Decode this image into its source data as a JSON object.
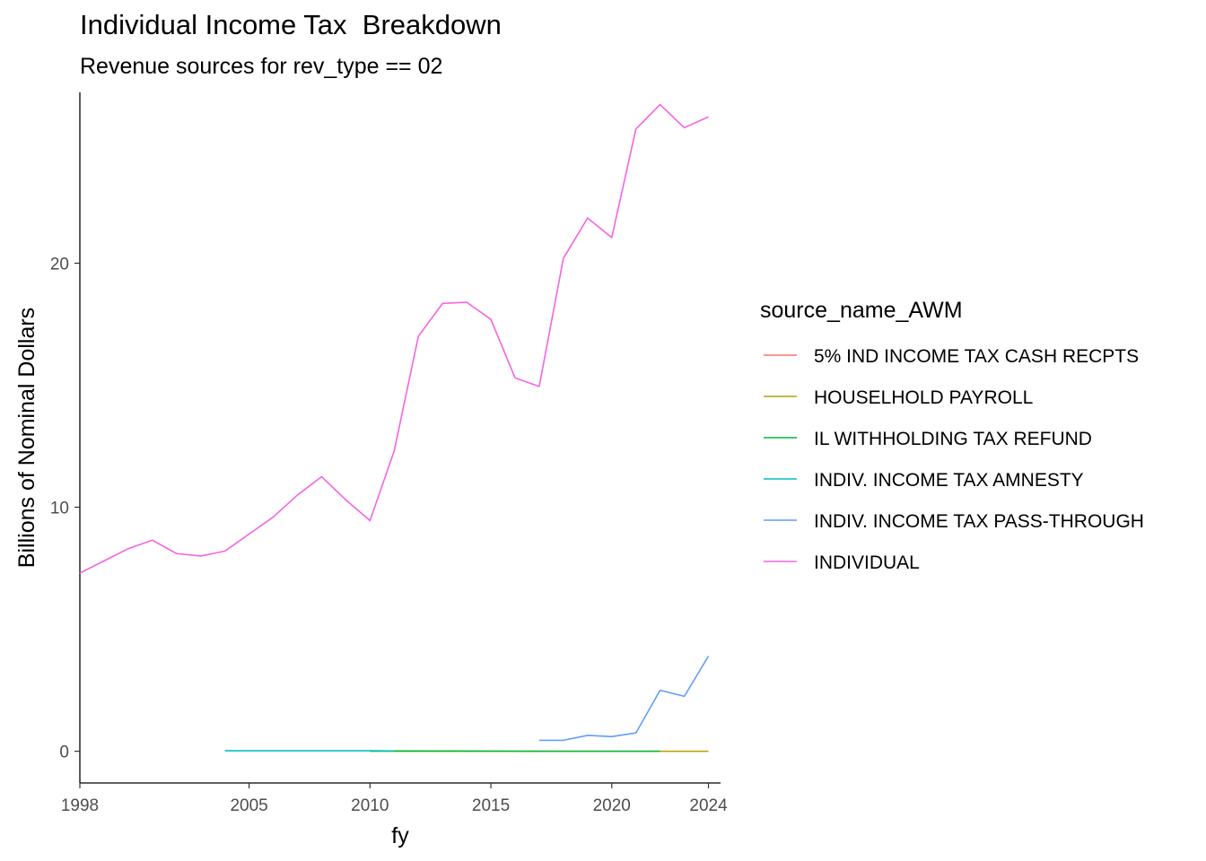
{
  "chart_data": {
    "type": "line",
    "title": "Individual Income Tax  Breakdown",
    "subtitle": "Revenue sources for rev_type == 02",
    "xlabel": "fy",
    "ylabel": "Billions of Nominal Dollars",
    "xlim": [
      1998,
      2024.5
    ],
    "ylim": [
      -1.3,
      27.0
    ],
    "x_ticks": [
      1998,
      2005,
      2010,
      2015,
      2020,
      2024
    ],
    "y_ticks": [
      0,
      10,
      20
    ],
    "grid": false,
    "legend": {
      "title": "source_name_AWM",
      "position": "right"
    },
    "series": [
      {
        "name": "5% IND INCOME TAX CASH RECPTS",
        "color": "#F8766D",
        "points": []
      },
      {
        "name": "HOUSELHOLD PAYROLL",
        "color": "#B79F00",
        "points": [
          [
            2010,
            0.0
          ],
          [
            2011,
            0.0
          ],
          [
            2012,
            0.0
          ],
          [
            2013,
            0.0
          ],
          [
            2014,
            0.0
          ],
          [
            2015,
            0.0
          ],
          [
            2016,
            0.0
          ],
          [
            2017,
            0.0
          ],
          [
            2018,
            0.0
          ],
          [
            2019,
            0.0
          ],
          [
            2020,
            0.0
          ],
          [
            2021,
            0.0
          ],
          [
            2022,
            0.0
          ],
          [
            2023,
            0.0
          ],
          [
            2024,
            0.0
          ]
        ]
      },
      {
        "name": "IL WITHHOLDING TAX REFUND",
        "color": "#00BA38",
        "points": [
          [
            2010,
            0.01
          ],
          [
            2011,
            0.01
          ],
          [
            2018,
            0.0
          ],
          [
            2019,
            0.0
          ],
          [
            2020,
            0.0
          ],
          [
            2021,
            0.0
          ],
          [
            2022,
            0.0
          ]
        ]
      },
      {
        "name": "INDIV. INCOME TAX AMNESTY",
        "color": "#00BFC4",
        "points": [
          [
            2004,
            0.02
          ],
          [
            2005,
            0.02
          ],
          [
            2006,
            0.02
          ],
          [
            2007,
            0.02
          ],
          [
            2008,
            0.02
          ],
          [
            2009,
            0.02
          ],
          [
            2010,
            0.02
          ],
          [
            2011,
            0.01
          ]
        ]
      },
      {
        "name": "INDIV. INCOME TAX PASS-THROUGH",
        "color": "#619CFF",
        "points": [
          [
            2017,
            0.45
          ],
          [
            2018,
            0.45
          ],
          [
            2019,
            0.65
          ],
          [
            2020,
            0.6
          ],
          [
            2021,
            0.75
          ],
          [
            2022,
            2.5
          ],
          [
            2023,
            2.25
          ],
          [
            2024,
            3.9
          ]
        ]
      },
      {
        "name": "INDIVIDUAL",
        "color": "#F564E3",
        "points": [
          [
            1998,
            7.3
          ],
          [
            1999,
            7.8
          ],
          [
            2000,
            8.3
          ],
          [
            2001,
            8.65
          ],
          [
            2002,
            8.1
          ],
          [
            2003,
            8.0
          ],
          [
            2004,
            8.2
          ],
          [
            2005,
            8.9
          ],
          [
            2006,
            9.6
          ],
          [
            2007,
            10.5
          ],
          [
            2008,
            11.25
          ],
          [
            2009,
            10.3
          ],
          [
            2010,
            9.45
          ],
          [
            2011,
            12.3
          ],
          [
            2012,
            17.0
          ],
          [
            2013,
            18.35
          ],
          [
            2014,
            18.4
          ],
          [
            2015,
            17.7
          ],
          [
            2016,
            15.3
          ],
          [
            2017,
            14.95
          ],
          [
            2018,
            20.2
          ],
          [
            2019,
            21.85
          ],
          [
            2020,
            21.05
          ],
          [
            2021,
            25.5
          ],
          [
            2022,
            26.5
          ],
          [
            2023,
            25.55
          ],
          [
            2024,
            26.0
          ]
        ]
      }
    ]
  }
}
